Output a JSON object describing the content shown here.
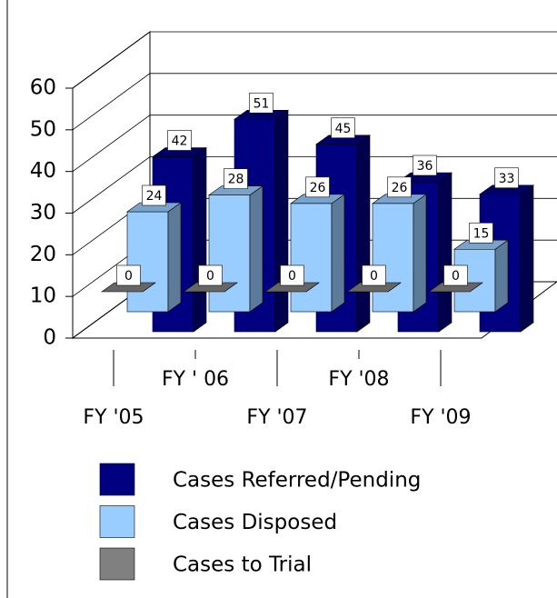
{
  "chart_data": {
    "type": "bar3d",
    "categories": [
      "FY '05",
      "FY ' 06",
      "FY '07",
      "FY '08",
      "FY '09"
    ],
    "series": [
      {
        "name": "Cases Referred/Pending",
        "color": "#000080",
        "values": [
          42,
          51,
          45,
          36,
          33
        ]
      },
      {
        "name": "Cases Disposed",
        "color": "#99ccff",
        "values": [
          24,
          28,
          26,
          26,
          15
        ]
      },
      {
        "name": "Cases to Trial",
        "color": "#808080",
        "values": [
          0,
          0,
          0,
          0,
          0
        ]
      }
    ],
    "ylim": [
      0,
      60
    ],
    "yticks": [
      0,
      10,
      20,
      30,
      40,
      50,
      60
    ],
    "grid": true,
    "legend": "bottom"
  }
}
